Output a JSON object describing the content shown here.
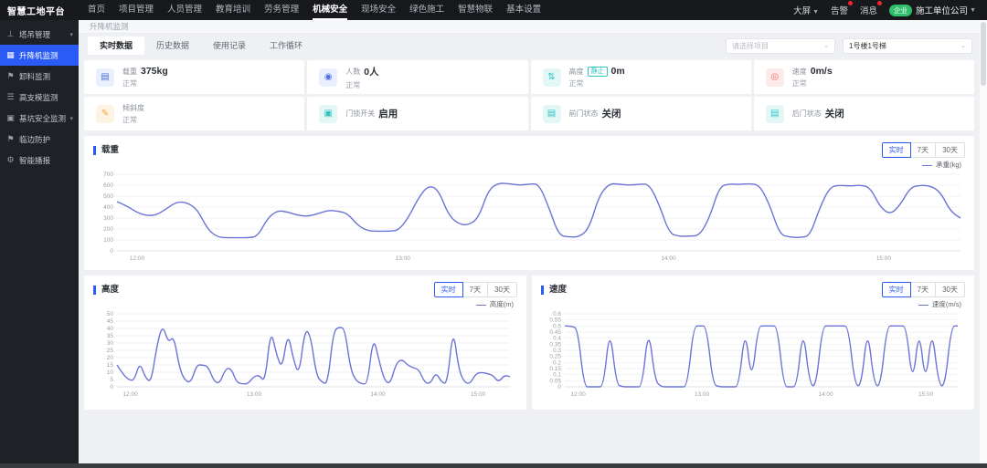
{
  "topbar": {
    "logo": "智慧工地平台",
    "nav": [
      {
        "label": "首页",
        "active": false
      },
      {
        "label": "项目管理",
        "active": false
      },
      {
        "label": "人员管理",
        "active": false
      },
      {
        "label": "教育培训",
        "active": false
      },
      {
        "label": "劳务管理",
        "active": false
      },
      {
        "label": "机械安全",
        "active": true
      },
      {
        "label": "现场安全",
        "active": false
      },
      {
        "label": "绿色施工",
        "active": false
      },
      {
        "label": "智慧物联",
        "active": false
      },
      {
        "label": "基本设置",
        "active": false
      }
    ],
    "right": {
      "screen_label": "大屏",
      "alarm_label": "告警",
      "message_label": "消息",
      "org_badge": "企业",
      "org_name": "施工单位公司"
    }
  },
  "sidebar": {
    "items": [
      {
        "label": "塔吊管理",
        "icon": "tower-crane-icon",
        "expandable": true,
        "active": false
      },
      {
        "label": "升降机监测",
        "icon": "hoist-grid-icon",
        "expandable": false,
        "active": true
      },
      {
        "label": "卸料监测",
        "icon": "unloading-flag-icon",
        "expandable": false,
        "active": false
      },
      {
        "label": "高支模监测",
        "icon": "formwork-icon",
        "expandable": false,
        "active": false
      },
      {
        "label": "基坑安全监测",
        "icon": "pit-monitor-icon",
        "expandable": true,
        "active": false
      },
      {
        "label": "临边防护",
        "icon": "edge-protection-flag-icon",
        "expandable": false,
        "active": false
      },
      {
        "label": "智能播报",
        "icon": "gear-icon",
        "expandable": false,
        "active": false
      }
    ]
  },
  "breadcrumb": "升降机监测",
  "tabs": [
    {
      "label": "实时数据",
      "active": true
    },
    {
      "label": "历史数据",
      "active": false
    },
    {
      "label": "使用记录",
      "active": false
    },
    {
      "label": "工作循环",
      "active": false
    }
  ],
  "filters": {
    "project_placeholder": "请选择项目",
    "device_value": "1号楼1号梯"
  },
  "stat_cards": [
    {
      "label": "载重",
      "value": "375kg",
      "status": "正常",
      "icon": "load-icon",
      "color": "#4a6fe6",
      "bg": "#eaeffd"
    },
    {
      "label": "人数",
      "value": "0人",
      "status": "正常",
      "icon": "people-icon",
      "color": "#4a6fe6",
      "bg": "#eaeffd"
    },
    {
      "label": "高度",
      "tag": "静止",
      "value": "0m",
      "status": "正常",
      "icon": "height-icon",
      "color": "#2fc3c3",
      "bg": "#e4f7f7"
    },
    {
      "label": "速度",
      "value": "0m/s",
      "status": "正常",
      "icon": "speed-icon",
      "color": "#f26c6c",
      "bg": "#fdeaea"
    },
    {
      "label": "倾斜度",
      "value": "",
      "status": "正常",
      "icon": "tilt-pen-icon",
      "color": "#eda93c",
      "bg": "#fdf3e3"
    },
    {
      "label": "门锁开关",
      "value": "启用",
      "status": "",
      "icon": "door-lock-icon",
      "color": "#2fc3c3",
      "bg": "#e4f7f7"
    },
    {
      "label": "前门状态",
      "value": "关闭",
      "status": "",
      "icon": "front-door-icon",
      "color": "#2fc3c3",
      "bg": "#e4f7f7"
    },
    {
      "label": "后门状态",
      "value": "关闭",
      "status": "",
      "icon": "back-door-icon",
      "color": "#2fc3c3",
      "bg": "#e4f7f7"
    }
  ],
  "range_buttons": [
    "实时",
    "7天",
    "30天"
  ],
  "range_active": "实时",
  "colors": {
    "accent": "#2b5bf7",
    "line": "#6a74d6",
    "sidebar_active": "#2b5bf7",
    "badge_green": "#2fbf6b",
    "alert_red": "#f5222d"
  },
  "chart_data": [
    {
      "key": "load",
      "type": "line",
      "title": "载重",
      "legend": "承重(kg)",
      "xlabel": "",
      "ylabel": "kg",
      "ylim": [
        0,
        700
      ],
      "yticks": [
        0,
        100,
        200,
        300,
        400,
        500,
        600,
        700
      ],
      "x_labels": [
        "12:00",
        "13:00",
        "14:00",
        "15:00"
      ],
      "grid": true,
      "legend_position": "top-right",
      "values": [
        450,
        410,
        350,
        320,
        330,
        390,
        450,
        440,
        380,
        200,
        125,
        120,
        120,
        120,
        130,
        300,
        370,
        355,
        325,
        315,
        340,
        370,
        365,
        340,
        230,
        182,
        180,
        180,
        185,
        300,
        480,
        600,
        560,
        330,
        245,
        235,
        300,
        560,
        620,
        615,
        600,
        608,
        615,
        400,
        140,
        128,
        126,
        200,
        500,
        615,
        610,
        600,
        608,
        612,
        420,
        160,
        132,
        135,
        138,
        300,
        590,
        612,
        606,
        615,
        600,
        420,
        150,
        125,
        122,
        135,
        400,
        585,
        600,
        592,
        602,
        580,
        400,
        330,
        420,
        580,
        600,
        594,
        540,
        360,
        300
      ]
    },
    {
      "key": "height",
      "type": "line",
      "title": "高度",
      "legend": "高度(m)",
      "xlabel": "",
      "ylabel": "m",
      "ylim": [
        0,
        50
      ],
      "yticks": [
        0,
        5,
        10,
        15,
        20,
        25,
        30,
        35,
        40,
        45,
        50
      ],
      "x_labels": [
        "12:00",
        "13:00",
        "14:00",
        "15:00"
      ],
      "grid": true,
      "legend_position": "top-right",
      "values": [
        15,
        9,
        5,
        4,
        17,
        6,
        3,
        28,
        43,
        30,
        35,
        12,
        4,
        3,
        15,
        15,
        14,
        4,
        2,
        12,
        13,
        3,
        2,
        2,
        7,
        8,
        3,
        40,
        22,
        12,
        38,
        18,
        8,
        40,
        35,
        8,
        3,
        2,
        38,
        41,
        40,
        12,
        4,
        2,
        2,
        35,
        18,
        4,
        2,
        16,
        19,
        15,
        13,
        12,
        3,
        2,
        10,
        3,
        2,
        41,
        12,
        3,
        2,
        9,
        10,
        9,
        8,
        3,
        8,
        7
      ]
    },
    {
      "key": "speed",
      "type": "line",
      "title": "速度",
      "legend": "速度(m/s)",
      "xlabel": "",
      "ylabel": "m/s",
      "ylim": [
        0,
        0.6
      ],
      "yticks": [
        0,
        0.05,
        0.1,
        0.15,
        0.2,
        0.25,
        0.3,
        0.35,
        0.4,
        0.45,
        0.5,
        0.55,
        0.6
      ],
      "x_labels": [
        "12:00",
        "13:00",
        "14:00",
        "15:00"
      ],
      "grid": true,
      "legend_position": "top-right",
      "values": [
        0.5,
        0.5,
        0.48,
        0,
        0,
        0,
        0,
        0.5,
        0.02,
        0,
        0,
        0,
        0,
        0.5,
        0.05,
        0,
        0,
        0,
        0,
        0,
        0.5,
        0.5,
        0.5,
        0.02,
        0,
        0,
        0,
        0,
        0.5,
        0.02,
        0.5,
        0.5,
        0.5,
        0.5,
        0,
        0,
        0,
        0.5,
        0.02,
        0,
        0.5,
        0.5,
        0.5,
        0.5,
        0.5,
        0.02,
        0,
        0.5,
        0.02,
        0,
        0.5,
        0.5,
        0.5,
        0.5,
        0,
        0.5,
        0,
        0.5,
        0.02,
        0,
        0.5,
        0.5
      ]
    }
  ]
}
